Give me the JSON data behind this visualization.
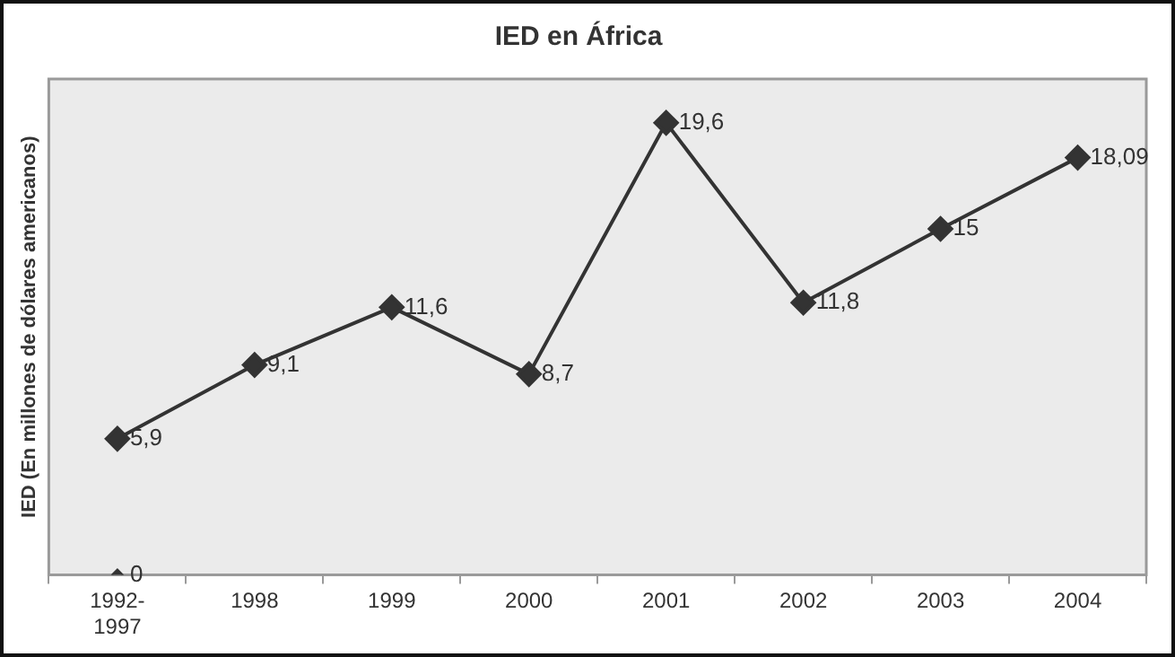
{
  "chart_data": {
    "type": "line",
    "title": "IED en África",
    "ylabel": "IED (En millones de dólares americanos)",
    "categories": [
      "1992-1997",
      "1998",
      "1999",
      "2000",
      "2001",
      "2002",
      "2003",
      "2004"
    ],
    "series": [
      {
        "color": "#333333",
        "values": [
          5.9,
          9.1,
          11.6,
          8.7,
          19.6,
          11.8,
          15,
          18.09
        ],
        "value_labels": [
          "5,9",
          "9,1",
          "11,6",
          "8,7",
          "19,6",
          "11,8",
          "15",
          "18,09"
        ]
      },
      {
        "type": "scatter",
        "color": "#333333",
        "values": [
          0,
          null,
          null,
          null,
          null,
          null,
          null,
          null
        ],
        "value_labels": [
          "0",
          null,
          null,
          null,
          null,
          null,
          null,
          null
        ]
      }
    ],
    "ylim": [
      0,
      21.5
    ],
    "tick_labels": "x",
    "marker": "diamond",
    "line_style": "solid",
    "grid": false,
    "legend": false
  }
}
